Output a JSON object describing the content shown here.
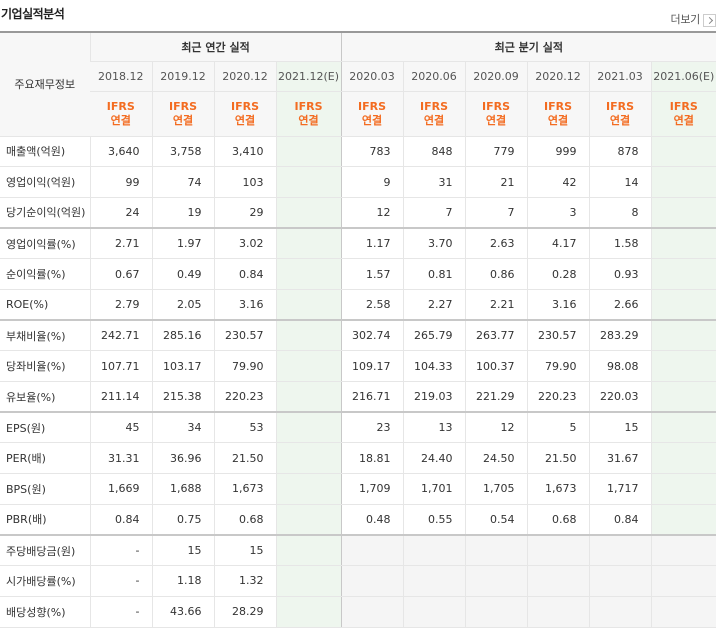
{
  "section_title": "기업실적분석",
  "more_label": "더보기",
  "header": {
    "row_label": "주요재무정보",
    "annual_group": "최근 연간 실적",
    "quarter_group": "최근 분기 실적",
    "annual_periods": [
      "2018.12",
      "2019.12",
      "2020.12",
      "2021.12(E)"
    ],
    "quarter_periods": [
      "2020.03",
      "2020.06",
      "2020.09",
      "2020.12",
      "2021.03",
      "2021.06(E)"
    ],
    "basis_top": "IFRS",
    "basis_bottom": "연결"
  },
  "rows": [
    {
      "label": "매출액(억원)",
      "annual": [
        "3,640",
        "3,758",
        "3,410",
        ""
      ],
      "quarter": [
        "783",
        "848",
        "779",
        "999",
        "878",
        ""
      ]
    },
    {
      "label": "영업이익(억원)",
      "annual": [
        "99",
        "74",
        "103",
        ""
      ],
      "quarter": [
        "9",
        "31",
        "21",
        "42",
        "14",
        ""
      ]
    },
    {
      "label": "당기순이익(억원)",
      "annual": [
        "24",
        "19",
        "29",
        ""
      ],
      "quarter": [
        "12",
        "7",
        "7",
        "3",
        "8",
        ""
      ]
    },
    {
      "label": "영업이익률(%)",
      "annual": [
        "2.71",
        "1.97",
        "3.02",
        ""
      ],
      "quarter": [
        "1.17",
        "3.70",
        "2.63",
        "4.17",
        "1.58",
        ""
      ]
    },
    {
      "label": "순이익률(%)",
      "annual": [
        "0.67",
        "0.49",
        "0.84",
        ""
      ],
      "quarter": [
        "1.57",
        "0.81",
        "0.86",
        "0.28",
        "0.93",
        ""
      ]
    },
    {
      "label": "ROE(%)",
      "annual": [
        "2.79",
        "2.05",
        "3.16",
        ""
      ],
      "quarter": [
        "2.58",
        "2.27",
        "2.21",
        "3.16",
        "2.66",
        ""
      ]
    },
    {
      "label": "부채비율(%)",
      "annual": [
        "242.71",
        "285.16",
        "230.57",
        ""
      ],
      "quarter": [
        "302.74",
        "265.79",
        "263.77",
        "230.57",
        "283.29",
        ""
      ]
    },
    {
      "label": "당좌비율(%)",
      "annual": [
        "107.71",
        "103.17",
        "79.90",
        ""
      ],
      "quarter": [
        "109.17",
        "104.33",
        "100.37",
        "79.90",
        "98.08",
        ""
      ]
    },
    {
      "label": "유보율(%)",
      "annual": [
        "211.14",
        "215.38",
        "220.23",
        ""
      ],
      "quarter": [
        "216.71",
        "219.03",
        "221.29",
        "220.23",
        "220.03",
        ""
      ]
    },
    {
      "label": "EPS(원)",
      "annual": [
        "45",
        "34",
        "53",
        ""
      ],
      "quarter": [
        "23",
        "13",
        "12",
        "5",
        "15",
        ""
      ]
    },
    {
      "label": "PER(배)",
      "annual": [
        "31.31",
        "36.96",
        "21.50",
        ""
      ],
      "quarter": [
        "18.81",
        "24.40",
        "24.50",
        "21.50",
        "31.67",
        ""
      ]
    },
    {
      "label": "BPS(원)",
      "annual": [
        "1,669",
        "1,688",
        "1,673",
        ""
      ],
      "quarter": [
        "1,709",
        "1,701",
        "1,705",
        "1,673",
        "1,717",
        ""
      ]
    },
    {
      "label": "PBR(배)",
      "annual": [
        "0.84",
        "0.75",
        "0.68",
        ""
      ],
      "quarter": [
        "0.48",
        "0.55",
        "0.54",
        "0.68",
        "0.84",
        ""
      ]
    },
    {
      "label": "주당배당금(원)",
      "annual": [
        "-",
        "15",
        "15",
        ""
      ],
      "quarter": [
        "",
        "",
        "",
        "",
        "",
        ""
      ]
    },
    {
      "label": "시가배당률(%)",
      "annual": [
        "-",
        "1.18",
        "1.32",
        ""
      ],
      "quarter": [
        "",
        "",
        "",
        "",
        "",
        ""
      ]
    },
    {
      "label": "배당성향(%)",
      "annual": [
        "-",
        "43.66",
        "28.29",
        ""
      ],
      "quarter": [
        "",
        "",
        "",
        "",
        "",
        ""
      ]
    }
  ]
}
